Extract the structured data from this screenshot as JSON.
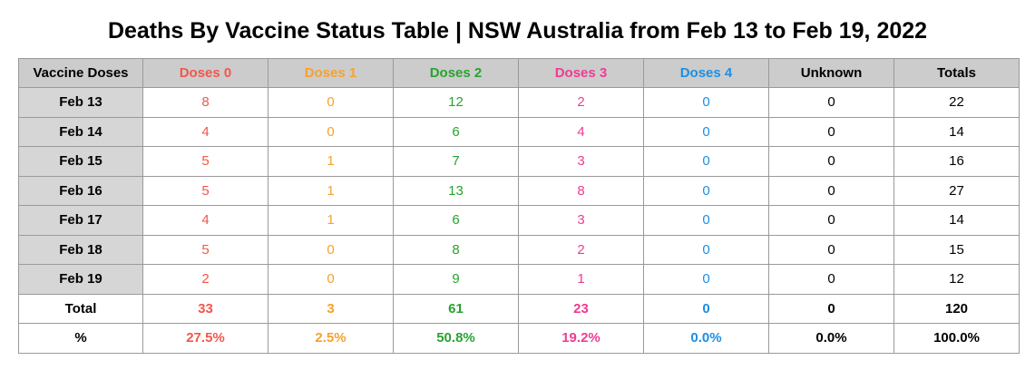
{
  "title": "Deaths By Vaccine Status Table | NSW Australia from Feb 13 to Feb 19, 2022",
  "colors": {
    "dose0": "#f2574c",
    "dose1": "#f7a12d",
    "dose2": "#27a32f",
    "dose3": "#ef3b93",
    "dose4": "#1b8fe6",
    "unknown": "#000000",
    "totals": "#000000"
  },
  "chart_data": {
    "type": "table",
    "title": "Deaths By Vaccine Status Table | NSW Australia from Feb 13 to Feb 19, 2022",
    "columns": [
      "Vaccine Doses",
      "Doses 0",
      "Doses 1",
      "Doses 2",
      "Doses 3",
      "Doses 4",
      "Unknown",
      "Totals"
    ],
    "rows": [
      {
        "label": "Feb 13",
        "values": [
          "8",
          "0",
          "12",
          "2",
          "0",
          "0",
          "22"
        ]
      },
      {
        "label": "Feb 14",
        "values": [
          "4",
          "0",
          "6",
          "4",
          "0",
          "0",
          "14"
        ]
      },
      {
        "label": "Feb 15",
        "values": [
          "5",
          "1",
          "7",
          "3",
          "0",
          "0",
          "16"
        ]
      },
      {
        "label": "Feb 16",
        "values": [
          "5",
          "1",
          "13",
          "8",
          "0",
          "0",
          "27"
        ]
      },
      {
        "label": "Feb 17",
        "values": [
          "4",
          "1",
          "6",
          "3",
          "0",
          "0",
          "14"
        ]
      },
      {
        "label": "Feb 18",
        "values": [
          "5",
          "0",
          "8",
          "2",
          "0",
          "0",
          "15"
        ]
      },
      {
        "label": "Feb 19",
        "values": [
          "2",
          "0",
          "9",
          "1",
          "0",
          "0",
          "12"
        ]
      }
    ],
    "summary": [
      {
        "label": "Total",
        "values": [
          "33",
          "3",
          "61",
          "23",
          "0",
          "0",
          "120"
        ]
      },
      {
        "label": "%",
        "values": [
          "27.5%",
          "2.5%",
          "50.8%",
          "19.2%",
          "0.0%",
          "0.0%",
          "100.0%"
        ]
      }
    ]
  }
}
